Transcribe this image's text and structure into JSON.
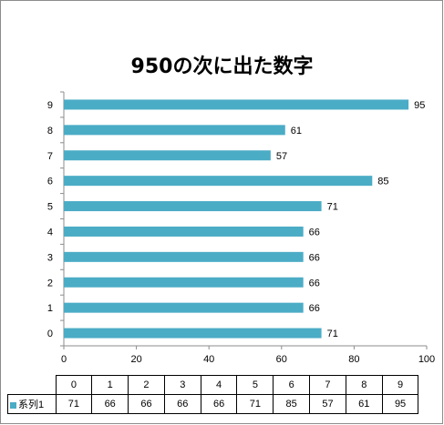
{
  "chart_data": {
    "type": "bar",
    "orientation": "horizontal",
    "title": "950の次に出た数字",
    "categories": [
      "0",
      "1",
      "2",
      "3",
      "4",
      "5",
      "6",
      "7",
      "8",
      "9"
    ],
    "series": [
      {
        "name": "系列1",
        "values": [
          71,
          66,
          66,
          66,
          66,
          71,
          85,
          57,
          61,
          95
        ],
        "color": "#4bacc6"
      }
    ],
    "xlim": [
      0,
      100
    ],
    "x_ticks": [
      0,
      20,
      40,
      60,
      80,
      100
    ],
    "data_labels": true,
    "grid": false,
    "legend": "data-table",
    "data_table": true
  }
}
